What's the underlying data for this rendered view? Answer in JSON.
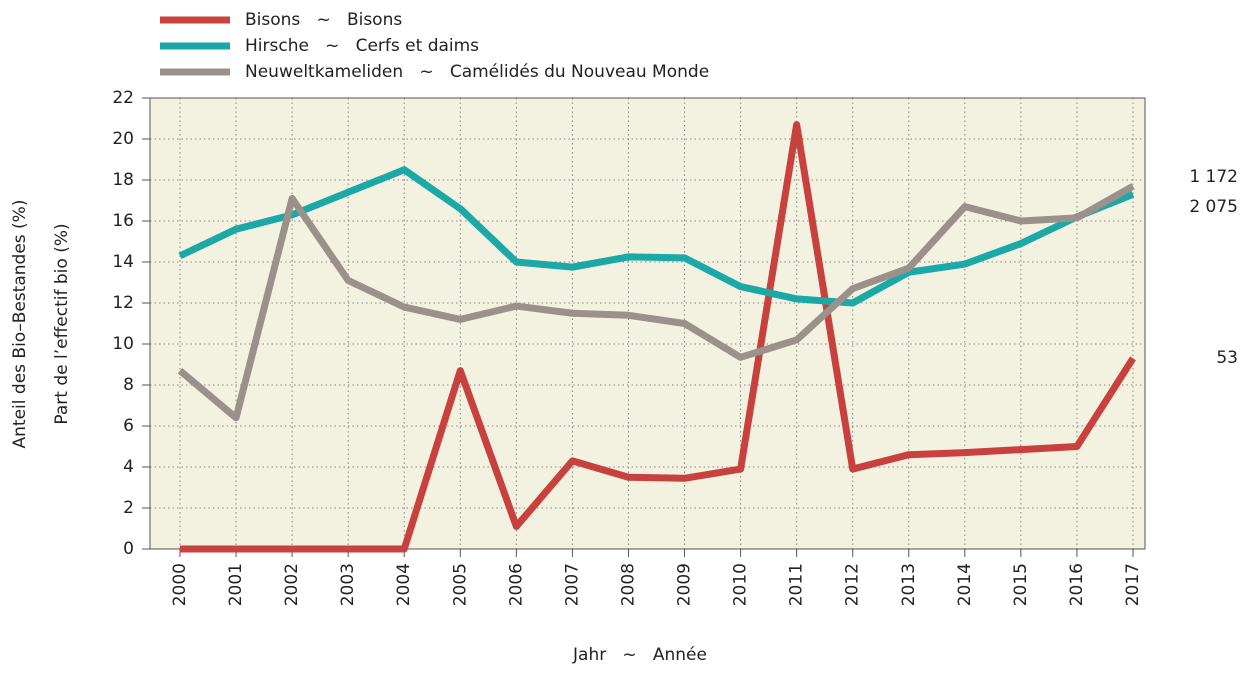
{
  "chart_data": {
    "type": "line",
    "categories": [
      "2000",
      "2001",
      "2002",
      "2003",
      "2004",
      "2005",
      "2006",
      "2007",
      "2008",
      "2009",
      "2010",
      "2011",
      "2012",
      "2013",
      "2014",
      "2015",
      "2016",
      "2017"
    ],
    "series": [
      {
        "name": "Bisons   ~   Bisons",
        "color": "#c8413e",
        "values": [
          0,
          0,
          0,
          0,
          0,
          8.7,
          1.1,
          4.3,
          3.5,
          3.45,
          3.9,
          20.7,
          3.9,
          4.6,
          4.7,
          4.85,
          5.0,
          9.3
        ]
      },
      {
        "name": "Hirsche   ~   Cerfs et daims",
        "color": "#1aa9a6",
        "values": [
          14.3,
          15.6,
          16.3,
          17.4,
          18.5,
          16.6,
          14.0,
          13.75,
          14.25,
          14.2,
          12.8,
          12.2,
          12.0,
          13.5,
          13.9,
          14.9,
          16.2,
          17.3
        ]
      },
      {
        "name": "Neuweltkameliden   ~   Camélidés du Nouveau Monde",
        "color": "#9a918b",
        "values": [
          8.7,
          6.4,
          17.1,
          13.1,
          11.8,
          11.2,
          11.85,
          11.5,
          11.4,
          11.0,
          9.35,
          10.2,
          12.7,
          13.7,
          16.7,
          16.0,
          16.15,
          17.7
        ]
      }
    ],
    "annotations": [
      "1 172",
      "2 075",
      "53"
    ],
    "y_label": [
      "Anteil des Bio–Bestandes (%)",
      "Part de l’effectif bio (%)"
    ],
    "x_label": "Jahr   ~   Année",
    "ylim": [
      0,
      22
    ],
    "yticks": [
      0,
      2,
      4,
      6,
      8,
      10,
      12,
      14,
      16,
      18,
      20,
      22
    ],
    "grid": true
  }
}
